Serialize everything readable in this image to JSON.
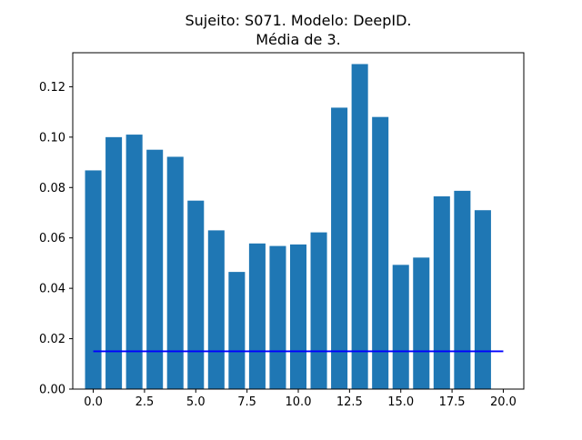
{
  "chart_data": {
    "type": "bar",
    "title_lines": [
      "Sujeito: S071. Modelo: DeepID.",
      "Média de 3."
    ],
    "xlabel": "",
    "ylabel": "",
    "x": [
      0,
      1,
      2,
      3,
      4,
      5,
      6,
      7,
      8,
      9,
      10,
      11,
      12,
      13,
      14,
      15,
      16,
      17,
      18,
      19
    ],
    "values": [
      0.0868,
      0.1,
      0.101,
      0.095,
      0.0922,
      0.0748,
      0.063,
      0.0465,
      0.0578,
      0.0568,
      0.0574,
      0.0622,
      0.1117,
      0.129,
      0.108,
      0.0493,
      0.0522,
      0.0765,
      0.0787,
      0.071
    ],
    "bar_color": "#1f77b4",
    "reference_line": {
      "y": 0.015,
      "x_range": [
        0,
        20
      ],
      "color": "#0000ff"
    },
    "xlim": [
      -1,
      21
    ],
    "ylim": [
      0,
      0.1335
    ],
    "xticks": [
      0.0,
      2.5,
      5.0,
      7.5,
      10.0,
      12.5,
      15.0,
      17.5,
      20.0
    ],
    "xtick_labels": [
      "0.0",
      "2.5",
      "5.0",
      "7.5",
      "10.0",
      "12.5",
      "15.0",
      "17.5",
      "20.0"
    ],
    "yticks": [
      0.0,
      0.02,
      0.04,
      0.06,
      0.08,
      0.1,
      0.12
    ],
    "ytick_labels": [
      "0.00",
      "0.02",
      "0.04",
      "0.06",
      "0.08",
      "0.10",
      "0.12"
    ],
    "grid": false,
    "legend": "none"
  }
}
